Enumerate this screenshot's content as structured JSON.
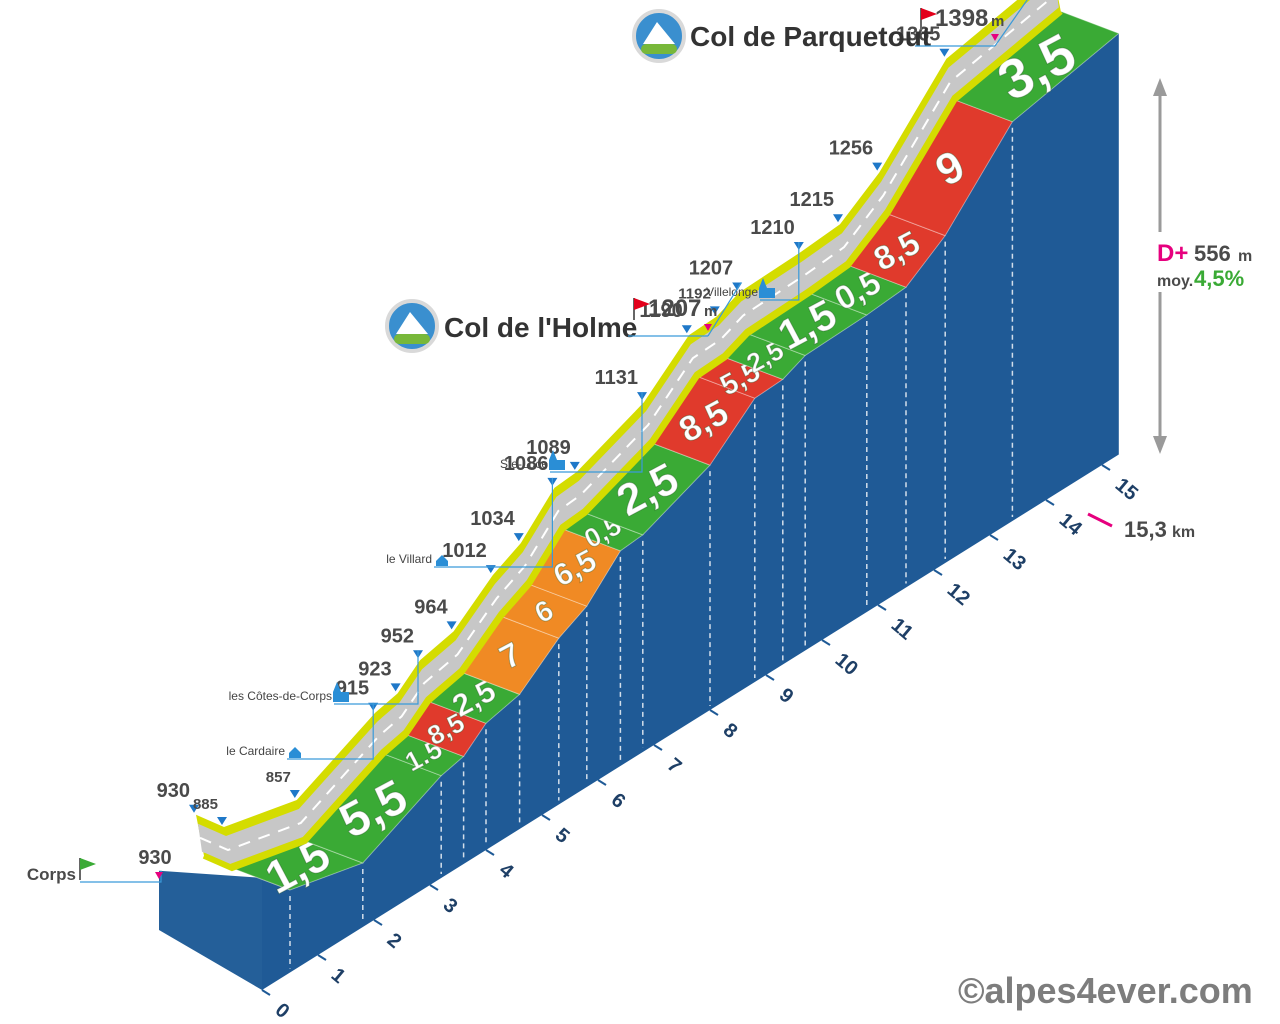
{
  "chart_data": {
    "type": "area",
    "title": "",
    "total_distance": {
      "value": "15,3",
      "unit": "km"
    },
    "elevation_gain": {
      "prefix": "D+",
      "value": "556",
      "unit": "m"
    },
    "average_gradient": {
      "prefix": "moy.",
      "value": "4,5%"
    },
    "x_ticks": [
      "0",
      "1",
      "2",
      "3",
      "4",
      "5",
      "6",
      "7",
      "8",
      "9",
      "10",
      "11",
      "12",
      "13",
      "14",
      "15"
    ],
    "segments": [
      {
        "start_km": 0.0,
        "end_km": 0.5,
        "gradient": "",
        "color": "#f08a24"
      },
      {
        "start_km": 0.5,
        "end_km": 1.8,
        "gradient": "1,5",
        "color": "#3aaa35"
      },
      {
        "start_km": 1.8,
        "end_km": 3.2,
        "gradient": "5,5",
        "color": "#3aaa35"
      },
      {
        "start_km": 3.2,
        "end_km": 3.6,
        "gradient": "1.5",
        "color": "#3aaa35"
      },
      {
        "start_km": 3.6,
        "end_km": 4.0,
        "gradient": "8,5",
        "color": "#e03a2c"
      },
      {
        "start_km": 4.0,
        "end_km": 4.6,
        "gradient": "2,5",
        "color": "#3aaa35"
      },
      {
        "start_km": 4.6,
        "end_km": 5.3,
        "gradient": "7",
        "color": "#f08a24"
      },
      {
        "start_km": 5.3,
        "end_km": 5.8,
        "gradient": "6",
        "color": "#f08a24"
      },
      {
        "start_km": 5.8,
        "end_km": 6.4,
        "gradient": "6,5",
        "color": "#f08a24"
      },
      {
        "start_km": 6.4,
        "end_km": 6.8,
        "gradient": "0,5",
        "color": "#3aaa35"
      },
      {
        "start_km": 6.8,
        "end_km": 8.0,
        "gradient": "2,5",
        "color": "#3aaa35"
      },
      {
        "start_km": 8.0,
        "end_km": 8.8,
        "gradient": "8,5",
        "color": "#e03a2c"
      },
      {
        "start_km": 8.8,
        "end_km": 9.3,
        "gradient": "5,5",
        "color": "#e03a2c"
      },
      {
        "start_km": 9.3,
        "end_km": 9.7,
        "gradient": "2,5",
        "color": "#3aaa35"
      },
      {
        "start_km": 9.7,
        "end_km": 10.8,
        "gradient": "1,5",
        "color": "#3aaa35"
      },
      {
        "start_km": 10.8,
        "end_km": 11.5,
        "gradient": "0,5",
        "color": "#3aaa35"
      },
      {
        "start_km": 11.5,
        "end_km": 12.2,
        "gradient": "8,5",
        "color": "#e03a2c"
      },
      {
        "start_km": 12.2,
        "end_km": 13.4,
        "gradient": "9",
        "color": "#e03a2c"
      },
      {
        "start_km": 13.4,
        "end_km": 15.3,
        "gradient": "3,5",
        "color": "#3aaa35"
      }
    ],
    "profile": [
      {
        "km": 0.0,
        "alt": 930
      },
      {
        "km": 0.5,
        "alt": 885
      },
      {
        "km": 1.8,
        "alt": 857
      },
      {
        "km": 3.2,
        "alt": 915
      },
      {
        "km": 3.6,
        "alt": 923
      },
      {
        "km": 4.0,
        "alt": 952
      },
      {
        "km": 4.6,
        "alt": 964
      },
      {
        "km": 5.3,
        "alt": 1012
      },
      {
        "km": 5.8,
        "alt": 1034
      },
      {
        "km": 6.4,
        "alt": 1086
      },
      {
        "km": 6.8,
        "alt": 1089
      },
      {
        "km": 8.0,
        "alt": 1131
      },
      {
        "km": 8.8,
        "alt": 1190
      },
      {
        "km": 9.3,
        "alt": 1192
      },
      {
        "km": 9.7,
        "alt": 1207
      },
      {
        "km": 10.8,
        "alt": 1210
      },
      {
        "km": 11.5,
        "alt": 1215
      },
      {
        "km": 12.2,
        "alt": 1256
      },
      {
        "km": 13.4,
        "alt": 1365
      },
      {
        "km": 15.3,
        "alt": 1398
      }
    ],
    "altitude_labels": [
      "930",
      "885",
      "857",
      "915",
      "923",
      "952",
      "964",
      "1012",
      "1034",
      "1086",
      "1089",
      "1131",
      "1190",
      "1192",
      "1207",
      "1210",
      "1215",
      "1256",
      "1365",
      "1398"
    ],
    "places": [
      {
        "name": "Corps",
        "alt": "930",
        "type": "start"
      },
      {
        "name": "le Cardaire",
        "type": "village"
      },
      {
        "name": "les Côtes-de-Corps",
        "type": "church"
      },
      {
        "name": "le Villard",
        "type": "village"
      },
      {
        "name": "Ste-Luce",
        "type": "church"
      },
      {
        "name": "Villelonge",
        "type": "church"
      },
      {
        "name": "Col de l'Holme",
        "alt": "1207",
        "unit": "m",
        "type": "pass"
      },
      {
        "name": "Col de Parquetout",
        "alt": "1398",
        "unit": "m",
        "type": "pass"
      }
    ],
    "colors": {
      "road_edge": "#d4dc00",
      "road": "#c7c7c7",
      "side": "#1f5a96",
      "marker": "#e6007e",
      "pin": "#1f78c8",
      "green": "#3aaa35",
      "orange": "#f08a24",
      "red": "#e03a2c"
    }
  },
  "credit": "©alpes4ever.com"
}
